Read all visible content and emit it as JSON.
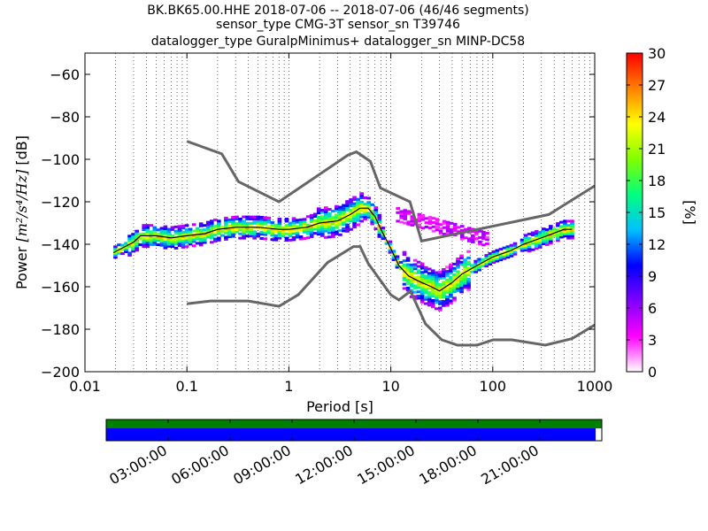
{
  "title_lines": [
    "BK.BK65.00.HHE   2018-07-06 -- 2018-07-06  (46/46 segments)",
    "sensor_type CMG-3T sensor_sn T39746",
    "datalogger_type GuralpMinimus+ datalogger_sn MINP-DC58"
  ],
  "chart_data": [
    {
      "type": "heatmap",
      "title": "BK.BK65.00.HHE   2018-07-06 -- 2018-07-06  (46/46 segments)",
      "subtitle": [
        "sensor_type CMG-3T sensor_sn T39746",
        "datalogger_type GuralpMinimus+ datalogger_sn MINP-DC58"
      ],
      "xlabel": "Period [s]",
      "ylabel_parts": [
        "Power ",
        "[m²/s⁴/Hz]",
        " [dB]"
      ],
      "xscale": "log",
      "xlim": [
        0.01,
        1000
      ],
      "ylim": [
        -200,
        -50
      ],
      "x_ticks": [
        0.01,
        0.1,
        1,
        10,
        100,
        1000
      ],
      "x_tick_labels": [
        "0.01",
        "0.1",
        "1",
        "10",
        "100",
        "1000"
      ],
      "y_ticks": [
        -200,
        -180,
        -160,
        -140,
        -120,
        -100,
        -80,
        -60
      ],
      "y_tick_labels": [
        "−200",
        "−180",
        "−160",
        "−140",
        "−120",
        "−100",
        "−80",
        "−60"
      ],
      "grid": "dotted vertical",
      "colorbar": {
        "label": "[%]",
        "range": [
          0,
          30
        ],
        "ticks": [
          0,
          3,
          6,
          9,
          12,
          15,
          18,
          21,
          24,
          27,
          30
        ],
        "colormap": [
          "#ffffff",
          "#ff00ff",
          "#8000ff",
          "#0000ff",
          "#00c0ff",
          "#00ff80",
          "#80ff00",
          "#ffff00",
          "#ff8000",
          "#ff0000"
        ]
      },
      "nhnm": {
        "x": [
          0.1,
          0.22,
          0.32,
          0.8,
          3.8,
          4.6,
          6.3,
          7.9,
          15.4,
          20,
          354.8,
          1000
        ],
        "y": [
          -91.5,
          -97.4,
          -110.5,
          -120,
          -98,
          -96.5,
          -101,
          -113.5,
          -120,
          -138.5,
          -126,
          -112.5
        ]
      },
      "nlnm": {
        "x": [
          0.1,
          0.17,
          0.4,
          0.8,
          1.24,
          2.4,
          4.3,
          5,
          6,
          10,
          12,
          15.6,
          21.9,
          31.6,
          45,
          70,
          101,
          154,
          328,
          600,
          1000
        ],
        "y": [
          -168,
          -166.7,
          -166.7,
          -169.2,
          -163.7,
          -148.6,
          -141.1,
          -141.1,
          -149,
          -163.8,
          -166.2,
          -162.1,
          -177.5,
          -185,
          -187.5,
          -187.5,
          -185,
          -185,
          -187.5,
          -184.4,
          -178
        ]
      },
      "mode_curve": {
        "x": [
          0.019,
          0.025,
          0.03,
          0.035,
          0.05,
          0.07,
          0.1,
          0.15,
          0.2,
          0.3,
          0.5,
          0.8,
          1,
          1.5,
          2,
          3,
          4,
          5,
          6,
          7,
          8,
          10,
          12,
          15,
          20,
          25,
          30,
          40,
          50,
          70,
          100,
          150,
          200,
          300,
          500,
          600
        ],
        "y": [
          -144,
          -141,
          -139,
          -136,
          -136,
          -137,
          -136,
          -135,
          -133,
          -132,
          -132,
          -133,
          -133,
          -132,
          -130,
          -129,
          -126,
          -123,
          -123,
          -127,
          -133,
          -142,
          -150,
          -155,
          -158,
          -160,
          -162,
          -158,
          -154,
          -150,
          -146,
          -143,
          -140,
          -137,
          -133,
          -133
        ]
      },
      "time_axis": {
        "tick_labels": [
          "03:00:00",
          "06:00:00",
          "09:00:00",
          "12:00:00",
          "15:00:00",
          "18:00:00",
          "21:00:00"
        ],
        "span_hours": [
          0,
          24
        ],
        "data_coverage_hours": [
          0,
          24
        ],
        "gap_coverage_hours": [
          0,
          23.7
        ],
        "data_color": "#008000",
        "gap_color": "#0000ff"
      }
    }
  ]
}
